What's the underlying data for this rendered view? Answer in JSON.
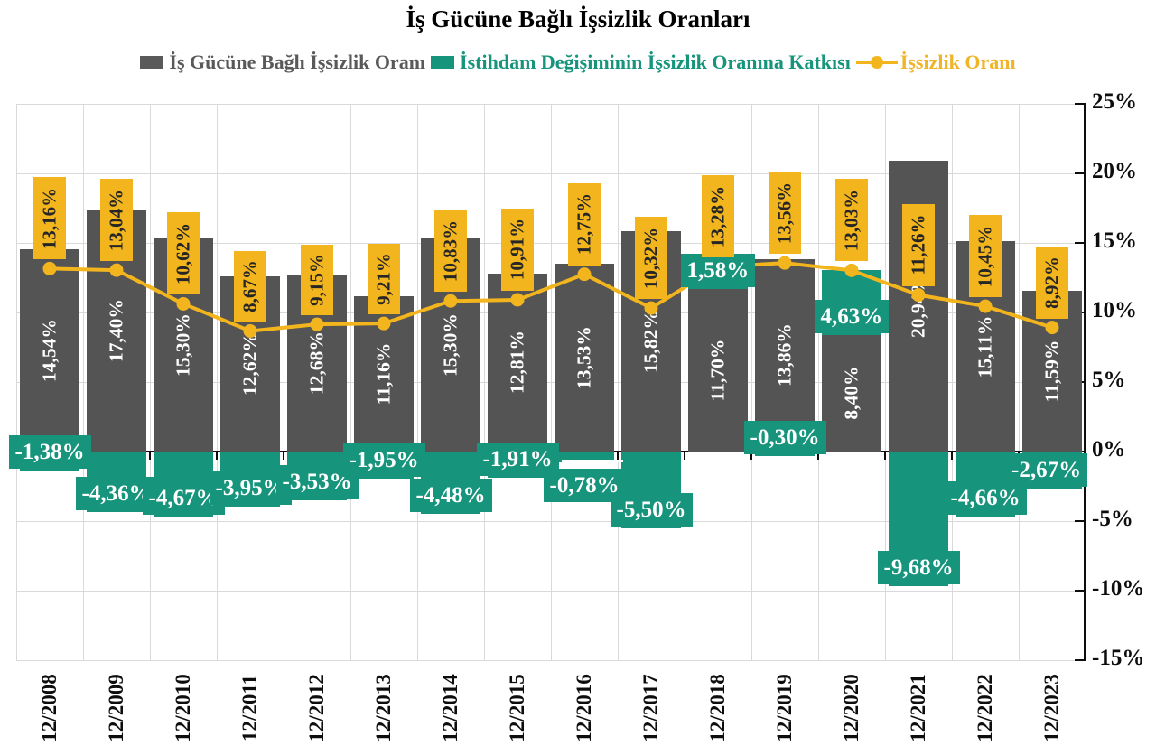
{
  "title": "İş Gücüne Bağlı İşsizlik Oranları",
  "colors": {
    "gray_series": "#545454",
    "teal_series": "#17947C",
    "yellow_series": "#F2B51D",
    "grid": "#d9d9d9",
    "axis": "#0d0d0d",
    "text_on_bars": "#ffffff",
    "text_on_gold": "#262626",
    "legend_gray_text": "#595959",
    "legend_teal_text": "#17947C",
    "legend_yellow_text": "#F0B428"
  },
  "legend": {
    "items": [
      {
        "label": "İş Gücüne Bağlı İşsizlik Oranı",
        "marker": "square",
        "color": "#595959"
      },
      {
        "label": "İstihdam Değişiminin İşsizlik Oranına Katkısı",
        "marker": "square",
        "color": "#17947C"
      },
      {
        "label": "İşsizlik Oranı",
        "marker": "line-dot",
        "color": "#F2B51D"
      }
    ]
  },
  "axis": {
    "y_tick_values": [
      25,
      20,
      15,
      10,
      5,
      0,
      -5,
      -10,
      -15
    ],
    "y_tick_labels": [
      "25%",
      "20%",
      "15%",
      "10%",
      "5%",
      "0%",
      "-5%",
      "-10%",
      "-15%"
    ]
  },
  "chart_data": {
    "type": "bar",
    "stacked": true,
    "grid": true,
    "legend_position": "top",
    "ylim": [
      -15,
      25
    ],
    "ytick_step": 5,
    "title": "İş Gücüne Bağlı İşsizlik Oranları",
    "xlabel": "",
    "ylabel": "",
    "categories": [
      "12/2008",
      "12/2009",
      "12/2010",
      "12/2011",
      "12/2012",
      "12/2013",
      "12/2014",
      "12/2015",
      "12/2016",
      "12/2017",
      "12/2018",
      "12/2019",
      "12/2020",
      "12/2021",
      "12/2022",
      "12/2023"
    ],
    "series": [
      {
        "name": "İş Gücüne Bağlı İşsizlik Oranı",
        "type": "bar",
        "color": "#545454",
        "values": [
          14.54,
          17.4,
          15.3,
          12.62,
          12.68,
          11.16,
          15.3,
          12.81,
          13.53,
          15.82,
          11.7,
          13.86,
          8.4,
          20.94,
          15.11,
          11.59
        ],
        "labels": [
          "14,54%",
          "17,40%",
          "15,30%",
          "12,62%",
          "12,68%",
          "11,16%",
          "15,30%",
          "12,81%",
          "13,53%",
          "15,82%",
          "11,70%",
          "13,86%",
          "8,40%",
          "20,94%",
          "15,11%",
          "11,59%"
        ]
      },
      {
        "name": "İstihdam Değişiminin İşsizlik Oranına Katkısı",
        "type": "bar",
        "color": "#17947C",
        "values": [
          -1.38,
          -4.36,
          -4.67,
          -3.95,
          -3.53,
          -1.95,
          -4.48,
          -1.91,
          -0.78,
          -5.5,
          1.58,
          -0.3,
          4.63,
          -9.68,
          -4.66,
          -2.67
        ],
        "labels": [
          "-1,38%",
          "-4,36%",
          "-4,67%",
          "-3,95%",
          "-3,53%",
          "-1,95%",
          "-4,48%",
          "-1,91%",
          "-0,78%",
          "-5,50%",
          "1,58%",
          "-0,30%",
          "4,63%",
          "-9,68%",
          "-4,66%",
          "-2,67%"
        ]
      },
      {
        "name": "İşsizlik Oranı",
        "type": "line",
        "color": "#F2B51D",
        "values": [
          13.16,
          13.04,
          10.62,
          8.67,
          9.15,
          9.21,
          10.83,
          10.91,
          12.75,
          10.32,
          13.28,
          13.56,
          13.03,
          11.26,
          10.45,
          8.92
        ],
        "labels": [
          "13,16%",
          "13,04%",
          "10,62%",
          "8,67%",
          "9,15%",
          "9,21%",
          "10,83%",
          "10,91%",
          "12,75%",
          "10,32%",
          "13,28%",
          "13,56%",
          "13,03%",
          "11,26%",
          "10,45%",
          "8,92%"
        ]
      }
    ]
  }
}
